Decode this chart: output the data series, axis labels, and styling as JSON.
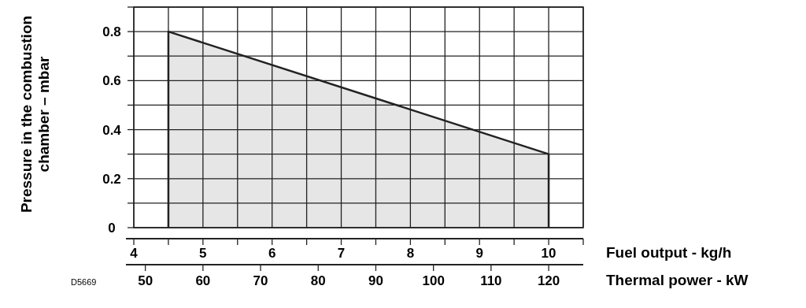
{
  "chart_data": {
    "type": "area",
    "xlabel": "Fuel output - kg/h",
    "ylabel": "Pressure in the combustion chamber – mbar",
    "x2label": "Thermal power - kW",
    "x": [
      4.5,
      10
    ],
    "series": [
      {
        "color": "#e6e6e6",
        "values": [
          0.8,
          0.3
        ]
      }
    ],
    "xlim": [
      4,
      10.5
    ],
    "xticks": [
      4,
      {
        "value": 4.5,
        "label": null
      },
      5,
      {
        "value": 5.5,
        "label": null
      },
      6,
      {
        "value": 6.5,
        "label": null
      },
      7,
      {
        "value": 7.5,
        "label": null
      },
      8,
      {
        "value": 8.5,
        "label": null
      },
      9,
      {
        "value": 9.5,
        "label": null
      },
      10,
      {
        "value": 10.5,
        "label": null
      }
    ],
    "x2lim": [
      48,
      126
    ],
    "x2ticks": [
      50,
      60,
      70,
      80,
      90,
      100,
      110,
      120
    ],
    "ylim": [
      0,
      0.9
    ],
    "yticks": [
      0,
      {
        "value": 0.1,
        "label": null
      },
      0.2,
      {
        "value": 0.3,
        "label": null
      },
      0.4,
      {
        "value": 0.5,
        "label": null
      },
      0.6,
      {
        "value": 0.7,
        "label": null
      },
      0.8,
      {
        "value": 0.9,
        "label": null
      }
    ],
    "grid": true,
    "annotations": [
      "D5669"
    ]
  }
}
